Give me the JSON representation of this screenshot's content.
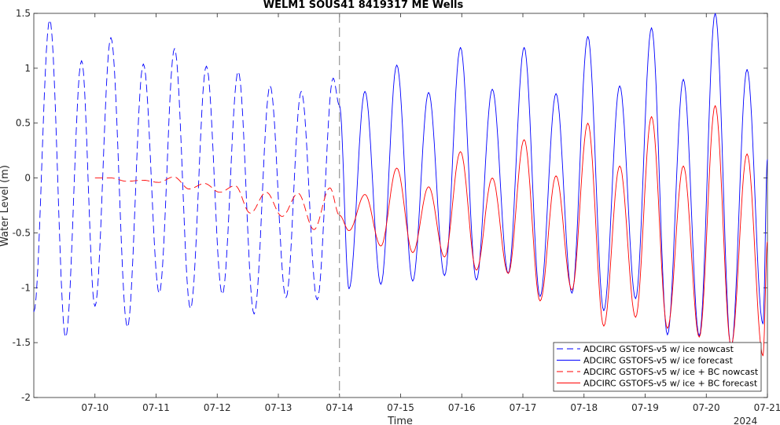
{
  "chart_data": {
    "type": "line",
    "title": "WELM1 SOUS41 8419317 ME Wells",
    "xlabel": "Time",
    "ylabel": "Water Level (m)",
    "year_label": "2024",
    "xlim": [
      "2024-07-09T00:00",
      "2024-07-21T00:00"
    ],
    "ylim": [
      -2,
      1.5
    ],
    "x_ticks": [
      {
        "date": "2024-07-10",
        "label": "07-10"
      },
      {
        "date": "2024-07-11",
        "label": "07-11"
      },
      {
        "date": "2024-07-12",
        "label": "07-12"
      },
      {
        "date": "2024-07-13",
        "label": "07-13"
      },
      {
        "date": "2024-07-14",
        "label": "07-14"
      },
      {
        "date": "2024-07-15",
        "label": "07-15"
      },
      {
        "date": "2024-07-16",
        "label": "07-16"
      },
      {
        "date": "2024-07-17",
        "label": "07-17"
      },
      {
        "date": "2024-07-18",
        "label": "07-18"
      },
      {
        "date": "2024-07-19",
        "label": "07-19"
      },
      {
        "date": "2024-07-20",
        "label": "07-20"
      },
      {
        "date": "2024-07-21",
        "label": "07-21"
      }
    ],
    "y_ticks": [
      {
        "value": 1.5,
        "label": "1.5"
      },
      {
        "value": 1,
        "label": "1"
      },
      {
        "value": 0.5,
        "label": "0.5"
      },
      {
        "value": 0,
        "label": "0"
      },
      {
        "value": -0.5,
        "label": "-0.5"
      },
      {
        "value": -1,
        "label": "-1"
      },
      {
        "value": -1.5,
        "label": "-1.5"
      },
      {
        "value": -2,
        "label": "-2"
      }
    ],
    "nowcast_forecast_boundary": "2024-07-14T00:00",
    "grid": false,
    "legend_position": "bottom-right",
    "series": [
      {
        "name": "ADCIRC GSTOFS-v5  w/ ice nowcast",
        "color": "#0000ff",
        "dash": "dashed",
        "points": [
          [
            "07-09 00:00",
            -1.22
          ],
          [
            "07-09 06:15",
            1.44
          ],
          [
            "07-09 12:30",
            -1.45
          ],
          [
            "07-09 18:45",
            1.07
          ],
          [
            "07-10 00:00",
            -1.17
          ],
          [
            "07-10 06:15",
            1.28
          ],
          [
            "07-10 12:45",
            -1.36
          ],
          [
            "07-10 19:00",
            1.04
          ],
          [
            "07-11 01:15",
            -1.05
          ],
          [
            "07-11 07:15",
            1.18
          ],
          [
            "07-11 13:30",
            -1.19
          ],
          [
            "07-11 19:45",
            1.02
          ],
          [
            "07-12 02:00",
            -1.06
          ],
          [
            "07-12 08:15",
            0.97
          ],
          [
            "07-12 14:30",
            -1.24
          ],
          [
            "07-12 20:45",
            0.84
          ],
          [
            "07-13 03:00",
            -1.09
          ],
          [
            "07-13 09:00",
            0.79
          ],
          [
            "07-13 15:15",
            -1.11
          ],
          [
            "07-13 21:30",
            0.91
          ],
          [
            "07-14 00:00",
            0.66
          ]
        ]
      },
      {
        "name": "ADCIRC GSTOFS-v5  w/ ice forecast",
        "color": "#0000ff",
        "dash": "solid",
        "points": [
          [
            "07-14 00:00",
            0.66
          ],
          [
            "07-14 03:45",
            -1.01
          ],
          [
            "07-14 10:00",
            0.79
          ],
          [
            "07-14 16:15",
            -0.97
          ],
          [
            "07-14 22:30",
            1.03
          ],
          [
            "07-15 04:45",
            -0.94
          ],
          [
            "07-15 11:00",
            0.78
          ],
          [
            "07-15 17:15",
            -0.89
          ],
          [
            "07-15 23:30",
            1.19
          ],
          [
            "07-16 05:45",
            -0.93
          ],
          [
            "07-16 12:00",
            0.81
          ],
          [
            "07-16 18:15",
            -0.87
          ],
          [
            "07-17 00:30",
            1.19
          ],
          [
            "07-17 06:45",
            -1.08
          ],
          [
            "07-17 13:00",
            0.77
          ],
          [
            "07-17 19:15",
            -1.05
          ],
          [
            "07-18 01:30",
            1.29
          ],
          [
            "07-18 07:45",
            -1.21
          ],
          [
            "07-18 14:00",
            0.84
          ],
          [
            "07-18 20:15",
            -1.1
          ],
          [
            "07-19 02:30",
            1.37
          ],
          [
            "07-19 08:45",
            -1.43
          ],
          [
            "07-19 15:00",
            0.9
          ],
          [
            "07-19 21:15",
            -1.44
          ],
          [
            "07-20 03:30",
            1.5
          ],
          [
            "07-20 09:45",
            -1.55
          ],
          [
            "07-20 16:00",
            0.99
          ],
          [
            "07-20 22:15",
            -1.33
          ],
          [
            "07-21 00:00",
            0.17
          ]
        ]
      },
      {
        "name": "ADCIRC GSTOFS-v5  w/ ice + BC nowcast",
        "color": "#ff0000",
        "dash": "dashed",
        "points": [
          [
            "07-10 00:00",
            0.0
          ],
          [
            "07-10 06:15",
            0.0
          ],
          [
            "07-10 12:30",
            -0.03
          ],
          [
            "07-10 18:45",
            -0.02
          ],
          [
            "07-11 01:00",
            -0.04
          ],
          [
            "07-11 07:00",
            0.01
          ],
          [
            "07-11 13:00",
            -0.1
          ],
          [
            "07-11 19:00",
            -0.05
          ],
          [
            "07-12 01:00",
            -0.13
          ],
          [
            "07-12 07:00",
            -0.07
          ],
          [
            "07-12 13:00",
            -0.32
          ],
          [
            "07-12 19:15",
            -0.13
          ],
          [
            "07-13 01:30",
            -0.35
          ],
          [
            "07-13 07:45",
            -0.14
          ],
          [
            "07-13 14:00",
            -0.47
          ],
          [
            "07-13 20:15",
            -0.09
          ],
          [
            "07-14 00:00",
            -0.34
          ]
        ]
      },
      {
        "name": "ADCIRC GSTOFS-v5  w/ ice + BC forecast",
        "color": "#ff0000",
        "dash": "solid",
        "points": [
          [
            "07-14 00:00",
            -0.34
          ],
          [
            "07-14 03:45",
            -0.48
          ],
          [
            "07-14 10:00",
            -0.15
          ],
          [
            "07-14 16:15",
            -0.62
          ],
          [
            "07-14 22:30",
            0.09
          ],
          [
            "07-15 04:45",
            -0.68
          ],
          [
            "07-15 11:00",
            -0.08
          ],
          [
            "07-15 17:15",
            -0.72
          ],
          [
            "07-15 23:30",
            0.24
          ],
          [
            "07-16 05:45",
            -0.84
          ],
          [
            "07-16 12:00",
            0.0
          ],
          [
            "07-16 18:15",
            -0.87
          ],
          [
            "07-17 00:30",
            0.35
          ],
          [
            "07-17 06:45",
            -1.12
          ],
          [
            "07-17 13:00",
            0.02
          ],
          [
            "07-17 19:15",
            -1.02
          ],
          [
            "07-18 01:30",
            0.5
          ],
          [
            "07-18 07:45",
            -1.35
          ],
          [
            "07-18 14:00",
            0.11
          ],
          [
            "07-18 20:15",
            -1.27
          ],
          [
            "07-19 02:30",
            0.56
          ],
          [
            "07-19 08:45",
            -1.37
          ],
          [
            "07-19 15:00",
            0.11
          ],
          [
            "07-19 21:15",
            -1.45
          ],
          [
            "07-20 03:30",
            0.66
          ],
          [
            "07-20 09:45",
            -1.53
          ],
          [
            "07-20 16:00",
            0.22
          ],
          [
            "07-20 22:15",
            -1.62
          ],
          [
            "07-21 00:00",
            -0.58
          ]
        ]
      }
    ]
  }
}
